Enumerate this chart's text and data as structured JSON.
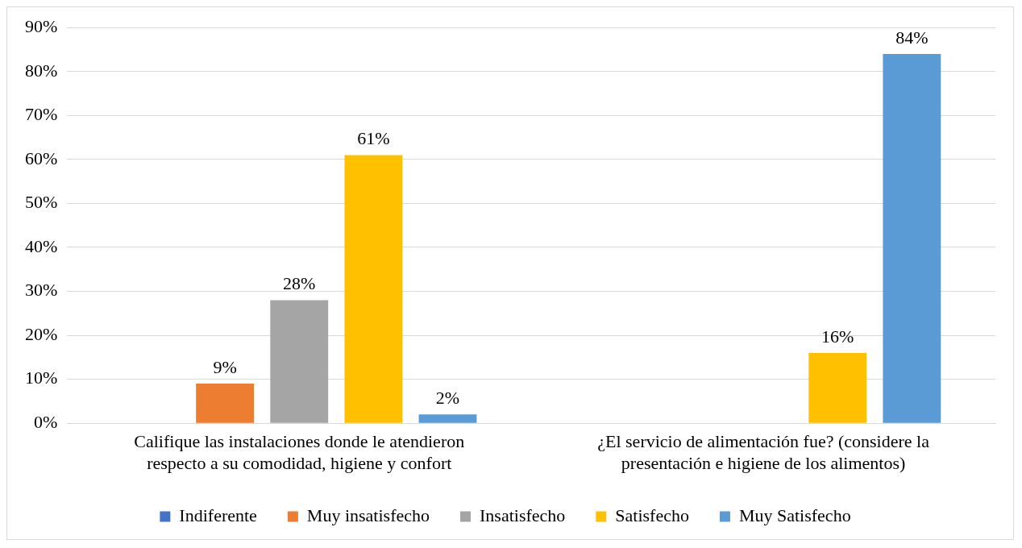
{
  "chart_data": {
    "type": "bar",
    "categories": [
      "Califique las instalaciones donde le atendieron respecto a su comodidad, higiene y confort",
      "¿El servicio de alimentación fue? (considere la presentación e higiene de los alimentos)"
    ],
    "series": [
      {
        "name": "Indiferente",
        "color": "#4472c4",
        "values": [
          null,
          null
        ]
      },
      {
        "name": "Muy insatisfecho",
        "color": "#ed7d31",
        "values": [
          9,
          null
        ],
        "value_labels": [
          "9%",
          null
        ]
      },
      {
        "name": "Insatisfecho",
        "color": "#a5a5a5",
        "values": [
          28,
          null
        ],
        "value_labels": [
          "28%",
          null
        ]
      },
      {
        "name": "Satisfecho",
        "color": "#ffc000",
        "values": [
          61,
          16
        ],
        "value_labels": [
          "61%",
          "16%"
        ]
      },
      {
        "name": "Muy Satisfecho",
        "color": "#5b9bd5",
        "values": [
          2,
          84
        ],
        "value_labels": [
          "2%",
          "84%"
        ]
      }
    ],
    "ylim": [
      0,
      90
    ],
    "yticks": [
      {
        "value": 0,
        "label": "0%"
      },
      {
        "value": 10,
        "label": "10%"
      },
      {
        "value": 20,
        "label": "20%"
      },
      {
        "value": 30,
        "label": "30%"
      },
      {
        "value": 40,
        "label": "40%"
      },
      {
        "value": 50,
        "label": "50%"
      },
      {
        "value": 60,
        "label": "60%"
      },
      {
        "value": 70,
        "label": "70%"
      },
      {
        "value": 80,
        "label": "80%"
      },
      {
        "value": 90,
        "label": "90%"
      }
    ],
    "grid": "y",
    "legend": "bottom"
  }
}
